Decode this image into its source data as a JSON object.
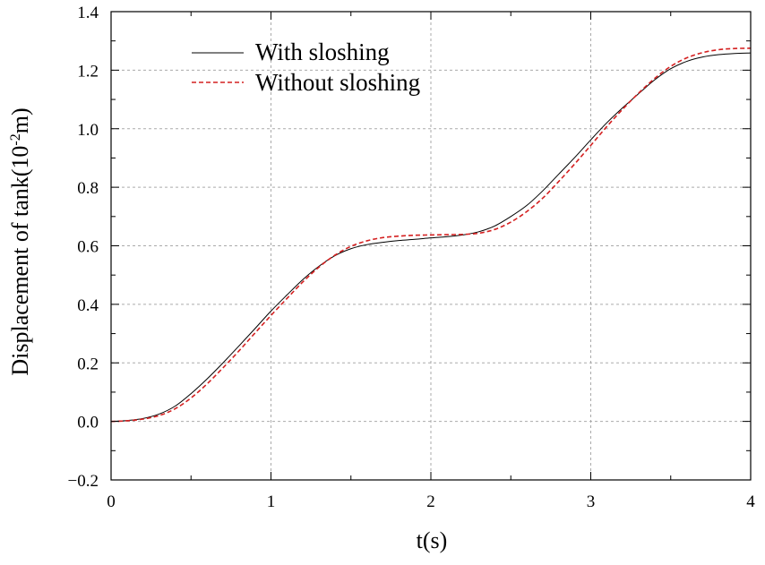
{
  "chart_data": {
    "type": "line",
    "title": "",
    "xlabel": "t(s)",
    "ylabel": {
      "prefix": "Displacement of tank(10",
      "superscript": "-2",
      "suffix": "m)"
    },
    "xlim": [
      0,
      4
    ],
    "ylim": [
      -0.2,
      1.4
    ],
    "xticks": [
      0,
      1,
      2,
      3,
      4
    ],
    "xtick_labels": [
      "0",
      "1",
      "2",
      "3",
      "4"
    ],
    "yticks": [
      -0.2,
      0.0,
      0.2,
      0.4,
      0.6,
      0.8,
      1.0,
      1.2,
      1.4
    ],
    "ytick_labels": [
      "−0.2",
      "0.0",
      "0.2",
      "0.4",
      "0.6",
      "0.8",
      "1.0",
      "1.2",
      "1.4"
    ],
    "grid": true,
    "legend_position": "top-left",
    "series": [
      {
        "name": "With sloshing",
        "color": "#000000",
        "style": "solid",
        "x": [
          0,
          0.1,
          0.2,
          0.3,
          0.4,
          0.5,
          0.6,
          0.7,
          0.8,
          0.9,
          1.0,
          1.1,
          1.2,
          1.3,
          1.4,
          1.5,
          1.6,
          1.7,
          1.8,
          1.9,
          2.0,
          2.1,
          2.2,
          2.3,
          2.4,
          2.5,
          2.6,
          2.7,
          2.8,
          2.9,
          3.0,
          3.1,
          3.2,
          3.3,
          3.4,
          3.5,
          3.6,
          3.7,
          3.8,
          3.9,
          4.0
        ],
        "y": [
          0.0,
          0.003,
          0.01,
          0.025,
          0.052,
          0.095,
          0.145,
          0.2,
          0.258,
          0.317,
          0.377,
          0.432,
          0.485,
          0.53,
          0.566,
          0.59,
          0.604,
          0.612,
          0.618,
          0.622,
          0.627,
          0.631,
          0.637,
          0.648,
          0.668,
          0.7,
          0.738,
          0.788,
          0.845,
          0.902,
          0.962,
          1.02,
          1.072,
          1.12,
          1.167,
          1.205,
          1.23,
          1.245,
          1.253,
          1.257,
          1.259
        ]
      },
      {
        "name": "Without sloshing",
        "color": "#d42020",
        "style": "dashed",
        "x": [
          0,
          0.1,
          0.2,
          0.3,
          0.4,
          0.5,
          0.6,
          0.7,
          0.8,
          0.9,
          1.0,
          1.1,
          1.2,
          1.3,
          1.4,
          1.5,
          1.6,
          1.7,
          1.8,
          1.9,
          2.0,
          2.1,
          2.2,
          2.3,
          2.4,
          2.5,
          2.6,
          2.7,
          2.8,
          2.9,
          3.0,
          3.1,
          3.2,
          3.3,
          3.4,
          3.5,
          3.6,
          3.7,
          3.8,
          3.9,
          4.0
        ],
        "y": [
          0.0,
          0.002,
          0.008,
          0.02,
          0.043,
          0.08,
          0.128,
          0.183,
          0.241,
          0.302,
          0.362,
          0.42,
          0.477,
          0.527,
          0.568,
          0.598,
          0.617,
          0.628,
          0.633,
          0.636,
          0.637,
          0.638,
          0.639,
          0.643,
          0.656,
          0.681,
          0.717,
          0.763,
          0.82,
          0.88,
          0.943,
          1.007,
          1.067,
          1.122,
          1.172,
          1.213,
          1.242,
          1.26,
          1.27,
          1.274,
          1.275
        ]
      }
    ]
  }
}
